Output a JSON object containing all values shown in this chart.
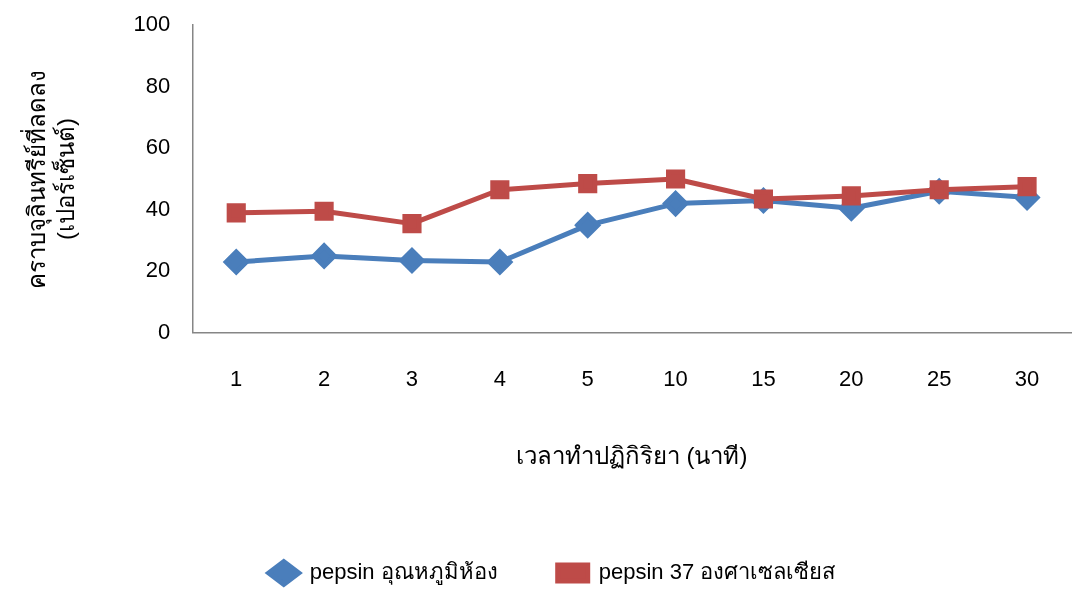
{
  "chart_data": {
    "type": "line",
    "xlabel": "เวลาทำปฏิกิริยา (นาที)",
    "ylabel": "คราบจุลินทรีย์ที่ลดลง\n(เปอร์เซ็นต์)",
    "categories": [
      "1",
      "2",
      "3",
      "4",
      "5",
      "10",
      "15",
      "20",
      "25",
      "30"
    ],
    "series": [
      {
        "name": "pepsin อุณหภูมิห้อง",
        "color": "#4a7ebb",
        "marker": "diamond",
        "values": [
          23,
          25,
          23.5,
          23,
          35,
          42,
          43,
          40.5,
          46,
          44
        ]
      },
      {
        "name": "pepsin 37 องศาเซลเซียส",
        "color": "#be4b48",
        "marker": "square",
        "values": [
          39,
          39.5,
          35.5,
          46.5,
          48.5,
          50,
          43.5,
          44.5,
          46.5,
          47.5
        ]
      }
    ],
    "ylim": [
      0,
      100
    ],
    "yticks": [
      0,
      20,
      40,
      60,
      80,
      100
    ],
    "grid": false,
    "legend": "bottom",
    "line_style": "solid"
  }
}
